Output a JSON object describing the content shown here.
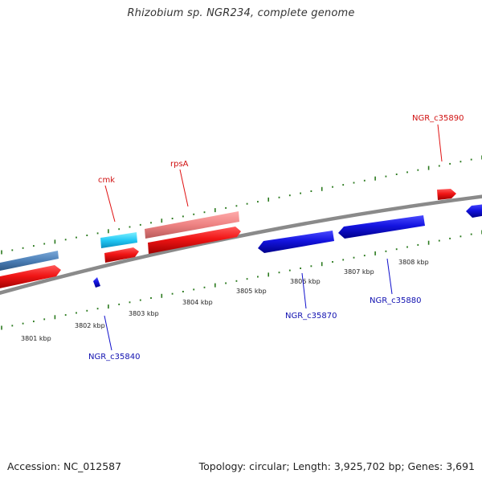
{
  "title": "Rhizobium sp. NGR234, complete genome",
  "footer": {
    "accession": "Accession: NC_012587",
    "summary": "Topology: circular; Length: 3,925,702 bp; Genes: 3,691"
  },
  "colors": {
    "tick": "#2b7a1e",
    "backbone": "#808080",
    "forward_gene": "#e8101a",
    "reverse_gene": "#1010dd",
    "forward_label": "#d01010",
    "reverse_label": "#1010b0"
  },
  "scale": {
    "unit": "kbp",
    "labels": [
      "3801 kbp",
      "3802 kbp",
      "3803 kbp",
      "3804 kbp",
      "3805 kbp",
      "3806 kbp",
      "3807 kbp",
      "3808 kbp"
    ]
  },
  "genes": {
    "labeled": [
      {
        "name": "cmk",
        "strand": "forward"
      },
      {
        "name": "rpsA",
        "strand": "forward"
      },
      {
        "name": "NGR_c35890",
        "strand": "forward"
      },
      {
        "name": "NGR_c35840",
        "strand": "reverse"
      },
      {
        "name": "NGR_c35870",
        "strand": "reverse"
      },
      {
        "name": "NGR_c35880",
        "strand": "reverse"
      }
    ]
  }
}
